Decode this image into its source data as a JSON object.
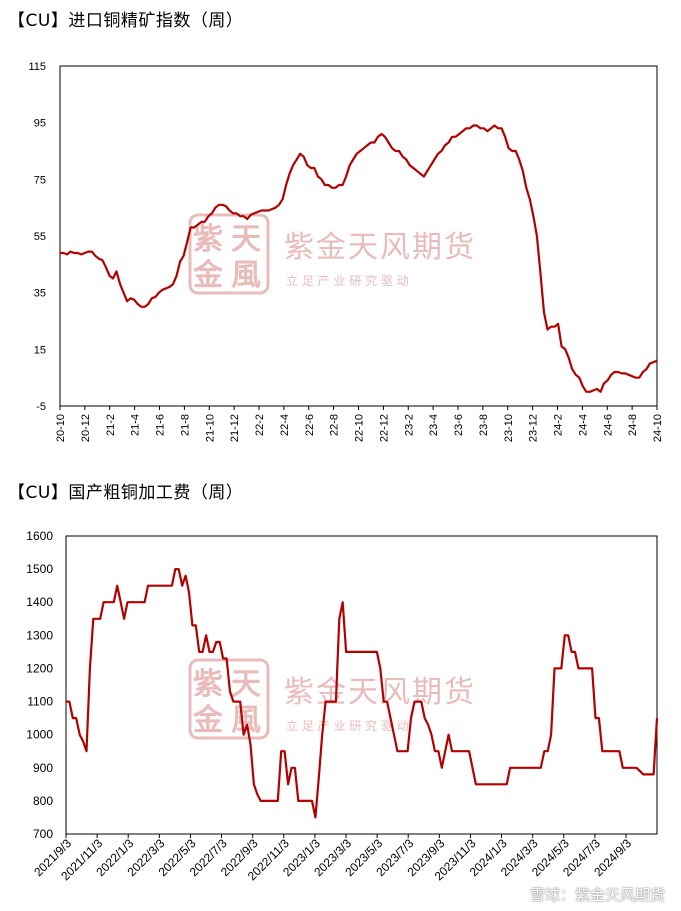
{
  "charts": {
    "chart1_title": "【CU】进口铜精矿指数（周）",
    "chart2_title": "【CU】国产粗铜加工费（周）"
  },
  "watermark": {
    "name": "紫金天风期货",
    "slogan": "立 足 产 业   研 究 驱 动",
    "logo_chars": "紫天金風",
    "footer": "雪球：紫金天风期货"
  },
  "colors": {
    "series": "#b30000",
    "watermark": "#e9bcbc",
    "axis": "#000000"
  },
  "chart_data": [
    {
      "type": "line",
      "title": "【CU】进口铜精矿指数（周）",
      "ylim": [
        -5,
        115
      ],
      "yticks": [
        -5,
        15,
        35,
        55,
        75,
        95,
        115
      ],
      "xticks": [
        "20-10",
        "20-12",
        "21-2",
        "21-4",
        "21-6",
        "21-8",
        "21-10",
        "21-12",
        "22-2",
        "22-4",
        "22-6",
        "22-8",
        "22-10",
        "22-12",
        "23-2",
        "23-4",
        "23-6",
        "23-8",
        "23-10",
        "23-12",
        "24-2",
        "24-4",
        "24-6",
        "24-8",
        "24-10"
      ],
      "grid": false,
      "series": [
        {
          "values": [
            49,
            49,
            48.5,
            49.5,
            49,
            49,
            48.5,
            49,
            49.5,
            49.5,
            48,
            47,
            46.5,
            44,
            41,
            40,
            42.5,
            38,
            35,
            32,
            33,
            32.5,
            31,
            30,
            30,
            31,
            33,
            33.5,
            35,
            36,
            36.5,
            37,
            38,
            41,
            46,
            48,
            53,
            58,
            58,
            59,
            60,
            60,
            62,
            63,
            65,
            66,
            66,
            65.5,
            64,
            63,
            63,
            62,
            62,
            61,
            62.5,
            63,
            63.5,
            64,
            64,
            64,
            64.5,
            65,
            66,
            68,
            73,
            77,
            80,
            82,
            84,
            83,
            80,
            79,
            79,
            76,
            75,
            73,
            73,
            72,
            72,
            73,
            73,
            76,
            80,
            82,
            84,
            85,
            86,
            87,
            88,
            88,
            90,
            91,
            90,
            88,
            86,
            85,
            85,
            83,
            82,
            80,
            79,
            78,
            77,
            76,
            78,
            80,
            82,
            84,
            85,
            87,
            88,
            90,
            90,
            91,
            92,
            93,
            93,
            94,
            94,
            93,
            93,
            92,
            93,
            94,
            93,
            93,
            90,
            86,
            85,
            85,
            82,
            78,
            72,
            68,
            62,
            55,
            42,
            28,
            22,
            23,
            23,
            24,
            16,
            15,
            12,
            8,
            6,
            5,
            2,
            0,
            0,
            0.5,
            1,
            0,
            3,
            4,
            6,
            7,
            7,
            6.5,
            6.5,
            6,
            5.5,
            5,
            5,
            7,
            8,
            10,
            10.5,
            11
          ]
        }
      ]
    },
    {
      "type": "line",
      "title": "【CU】国产粗铜加工费（周）",
      "ylim": [
        700,
        1600
      ],
      "yticks": [
        700,
        800,
        900,
        1000,
        1100,
        1200,
        1300,
        1400,
        1500,
        1600
      ],
      "xticks": [
        "2021/9/3",
        "2021/11/3",
        "2022/1/3",
        "2022/3/3",
        "2022/5/3",
        "2022/7/3",
        "2022/9/3",
        "2022/11/3",
        "2023/1/3",
        "2023/3/3",
        "2023/5/3",
        "2023/7/3",
        "2023/9/3",
        "2023/11/3",
        "2024/1/3",
        "2024/3/3",
        "2024/5/3",
        "2024/7/3",
        "2024/9/3"
      ],
      "grid": false,
      "series": [
        {
          "values": [
            1100,
            1100,
            1050,
            1050,
            1000,
            980,
            950,
            1200,
            1350,
            1350,
            1350,
            1400,
            1400,
            1400,
            1400,
            1450,
            1400,
            1350,
            1400,
            1400,
            1400,
            1400,
            1400,
            1400,
            1450,
            1450,
            1450,
            1450,
            1450,
            1450,
            1450,
            1450,
            1500,
            1500,
            1450,
            1480,
            1430,
            1330,
            1330,
            1250,
            1250,
            1300,
            1250,
            1250,
            1280,
            1280,
            1230,
            1230,
            1130,
            1100,
            1100,
            1100,
            1000,
            1030,
            970,
            850,
            820,
            800,
            800,
            800,
            800,
            800,
            800,
            950,
            950,
            850,
            900,
            900,
            800,
            800,
            800,
            800,
            800,
            750,
            870,
            1000,
            1100,
            1100,
            1100,
            1100,
            1350,
            1400,
            1250,
            1250,
            1250,
            1250,
            1250,
            1250,
            1250,
            1250,
            1250,
            1250,
            1200,
            1100,
            1100,
            1050,
            1000,
            950,
            950,
            950,
            950,
            1050,
            1100,
            1100,
            1100,
            1050,
            1030,
            1000,
            950,
            950,
            900,
            950,
            1000,
            950,
            950,
            950,
            950,
            950,
            950,
            900,
            850,
            850,
            850,
            850,
            850,
            850,
            850,
            850,
            850,
            850,
            900,
            900,
            900,
            900,
            900,
            900,
            900,
            900,
            900,
            900,
            950,
            950,
            1000,
            1200,
            1200,
            1200,
            1300,
            1300,
            1250,
            1250,
            1200,
            1200,
            1200,
            1200,
            1200,
            1050,
            1050,
            950,
            950,
            950,
            950,
            950,
            950,
            900,
            900,
            900,
            900,
            900,
            890,
            880,
            880,
            880,
            880,
            1050
          ]
        }
      ]
    }
  ]
}
